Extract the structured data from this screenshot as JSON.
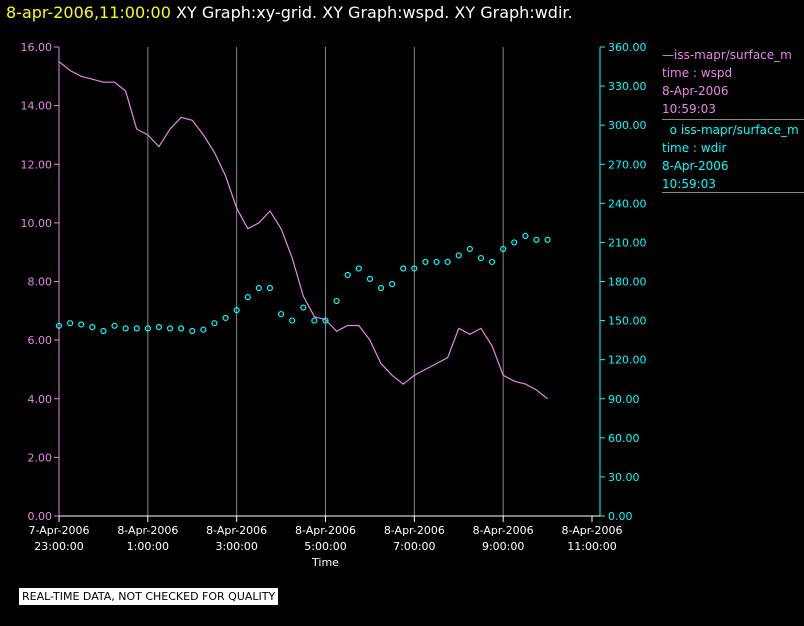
{
  "title": {
    "date": "8-apr-2006,11:00:00",
    "graphs": "XY Graph:xy-grid.  XY Graph:wspd.  XY Graph:wdir."
  },
  "legend": [
    {
      "symbol": "—",
      "name": "iss-mapr/surface_m",
      "var": "time : wspd",
      "date": "8-Apr-2006",
      "time": "10:59:03"
    },
    {
      "symbol": "o",
      "name": "iss-mapr/surface_m",
      "var": "time : wdir",
      "date": "8-Apr-2006",
      "time": "10:59:03"
    }
  ],
  "note": "REAL-TIME DATA, NOT CHECKED FOR QUALITY",
  "colors": {
    "wspd": "#ee82ee",
    "wdir": "#00ffff",
    "grid": "#888888",
    "axis": "#ffffff"
  },
  "chart_data": {
    "type": "line",
    "xlabel": "Time",
    "x_ticks": [
      {
        "l1": "7-Apr-2006",
        "l2": "23:00:00"
      },
      {
        "l1": "8-Apr-2006",
        "l2": "1:00:00"
      },
      {
        "l1": "8-Apr-2006",
        "l2": "3:00:00"
      },
      {
        "l1": "8-Apr-2006",
        "l2": "5:00:00"
      },
      {
        "l1": "8-Apr-2006",
        "l2": "7:00:00"
      },
      {
        "l1": "8-Apr-2006",
        "l2": "9:00:00"
      },
      {
        "l1": "8-Apr-2006",
        "l2": "11:00:00"
      }
    ],
    "x_range_hours": [
      0,
      12
    ],
    "y_left": {
      "ticks": [
        "0.00",
        "2.00",
        "4.00",
        "6.00",
        "8.00",
        "10.00",
        "12.00",
        "14.00",
        "16.00"
      ],
      "range": [
        0,
        16
      ]
    },
    "y_right": {
      "ticks": [
        "0.00",
        "30.00",
        "60.00",
        "90.00",
        "120.00",
        "150.00",
        "180.00",
        "210.00",
        "240.00",
        "270.00",
        "300.00",
        "330.00",
        "360.00"
      ],
      "range": [
        0,
        360
      ]
    },
    "series": [
      {
        "name": "time : wspd",
        "axis": "left",
        "style": "line",
        "x": [
          0,
          0.25,
          0.5,
          0.75,
          1,
          1.25,
          1.5,
          1.75,
          2,
          2.25,
          2.5,
          2.75,
          3,
          3.25,
          3.5,
          3.75,
          4,
          4.25,
          4.5,
          4.75,
          5,
          5.25,
          5.5,
          5.75,
          6,
          6.25,
          6.5,
          6.75,
          7,
          7.25,
          7.5,
          7.75,
          8,
          8.25,
          8.5,
          8.75,
          9,
          9.25,
          9.5,
          9.75,
          10,
          10.25,
          10.5,
          10.75,
          11
        ],
        "y": [
          15.5,
          15.2,
          15.0,
          14.9,
          14.8,
          14.8,
          14.5,
          13.2,
          13.0,
          12.6,
          13.2,
          13.6,
          13.5,
          13.0,
          12.4,
          11.6,
          10.5,
          9.8,
          10.0,
          10.4,
          9.8,
          8.8,
          7.5,
          6.8,
          6.7,
          6.3,
          6.5,
          6.5,
          6.0,
          5.2,
          4.8,
          4.5,
          4.8,
          5.0,
          5.2,
          5.4,
          6.4,
          6.2,
          6.4,
          5.8,
          4.8,
          4.6,
          4.5,
          4.3,
          4.0
        ]
      },
      {
        "name": "time : wdir",
        "axis": "right",
        "style": "circles",
        "x": [
          0,
          0.25,
          0.5,
          0.75,
          1,
          1.25,
          1.5,
          1.75,
          2,
          2.25,
          2.5,
          2.75,
          3,
          3.25,
          3.5,
          3.75,
          4,
          4.25,
          4.5,
          4.75,
          5,
          5.25,
          5.5,
          5.75,
          6,
          6.25,
          6.5,
          6.75,
          7,
          7.25,
          7.5,
          7.75,
          8,
          8.25,
          8.5,
          8.75,
          9,
          9.25,
          9.5,
          9.75,
          10,
          10.25,
          10.5,
          10.75,
          11
        ],
        "y": [
          146,
          148,
          147,
          145,
          142,
          146,
          144,
          144,
          144,
          145,
          144,
          144,
          142,
          143,
          148,
          152,
          158,
          168,
          175,
          175,
          155,
          150,
          160,
          150,
          150,
          165,
          185,
          190,
          182,
          175,
          178,
          190,
          190,
          195,
          195,
          195,
          200,
          205,
          198,
          195,
          205,
          210,
          215,
          212,
          212
        ]
      }
    ]
  }
}
